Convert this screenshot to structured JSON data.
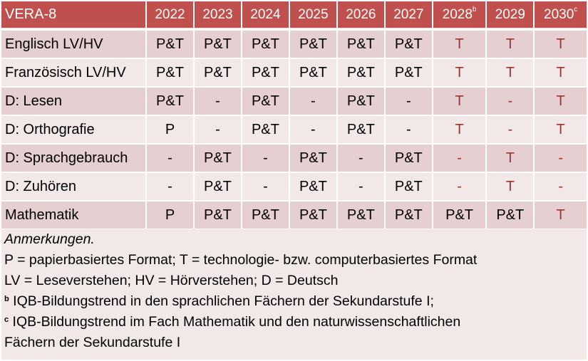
{
  "title": "VERA-8",
  "years": [
    {
      "label": "2022",
      "sup": ""
    },
    {
      "label": "2023",
      "sup": ""
    },
    {
      "label": "2024",
      "sup": ""
    },
    {
      "label": "2025",
      "sup": ""
    },
    {
      "label": "2026",
      "sup": ""
    },
    {
      "label": "2027",
      "sup": ""
    },
    {
      "label": "2028",
      "sup": "b"
    },
    {
      "label": "2029",
      "sup": ""
    },
    {
      "label": "2030",
      "sup": "c"
    }
  ],
  "rows": [
    {
      "subject": "Englisch LV/HV",
      "cells": [
        "P&T",
        "P&T",
        "P&T",
        "P&T",
        "P&T",
        "P&T",
        "T",
        "T",
        "T"
      ]
    },
    {
      "subject": "Französisch LV/HV",
      "cells": [
        "P&T",
        "P&T",
        "P&T",
        "P&T",
        "P&T",
        "P&T",
        "T",
        "T",
        "T"
      ]
    },
    {
      "subject": "D: Lesen",
      "cells": [
        "P&T",
        "-",
        "P&T",
        "-",
        "P&T",
        "-",
        "T",
        "-",
        "T"
      ]
    },
    {
      "subject": "D: Orthografie",
      "cells": [
        "P",
        "-",
        "P&T",
        "-",
        "P&T",
        "-",
        "T",
        "-",
        "T"
      ]
    },
    {
      "subject": "D: Sprachgebrauch",
      "cells": [
        "-",
        "P&T",
        "-",
        "P&T",
        "-",
        "P&T",
        "-",
        "T",
        "-"
      ]
    },
    {
      "subject": "D: Zuhören",
      "cells": [
        "-",
        "P&T",
        "-",
        "P&T",
        "-",
        "P&T",
        "-",
        "T",
        "-"
      ]
    },
    {
      "subject": "Mathematik",
      "cells": [
        "P",
        "P&T",
        "P&T",
        "P&T",
        "P&T",
        "P&T",
        "P&T",
        "P&T",
        "T"
      ]
    }
  ],
  "notes": {
    "heading": "Anmerkungen.",
    "line1": "P = papierbasiertes Format; T = technologie- bzw. computerbasiertes Format",
    "line2": "LV = Leseverstehen; HV = Hörverstehen; D = Deutsch",
    "b_marker": "b",
    "b_text": " IQB-Bildungstrend in den sprachlichen Fächern der Sekundarstufe I;",
    "c_marker": "c",
    "c_text": " IQB-Bildungstrend im Fach Mathematik und den naturwissenschaftlichen",
    "c_text2": "Fächern der Sekundarstufe I"
  },
  "colors": {
    "header": "#C0504D",
    "row_odd": "#E6CFD0",
    "row_even": "#F2E8E8",
    "future_text": "#953735"
  }
}
